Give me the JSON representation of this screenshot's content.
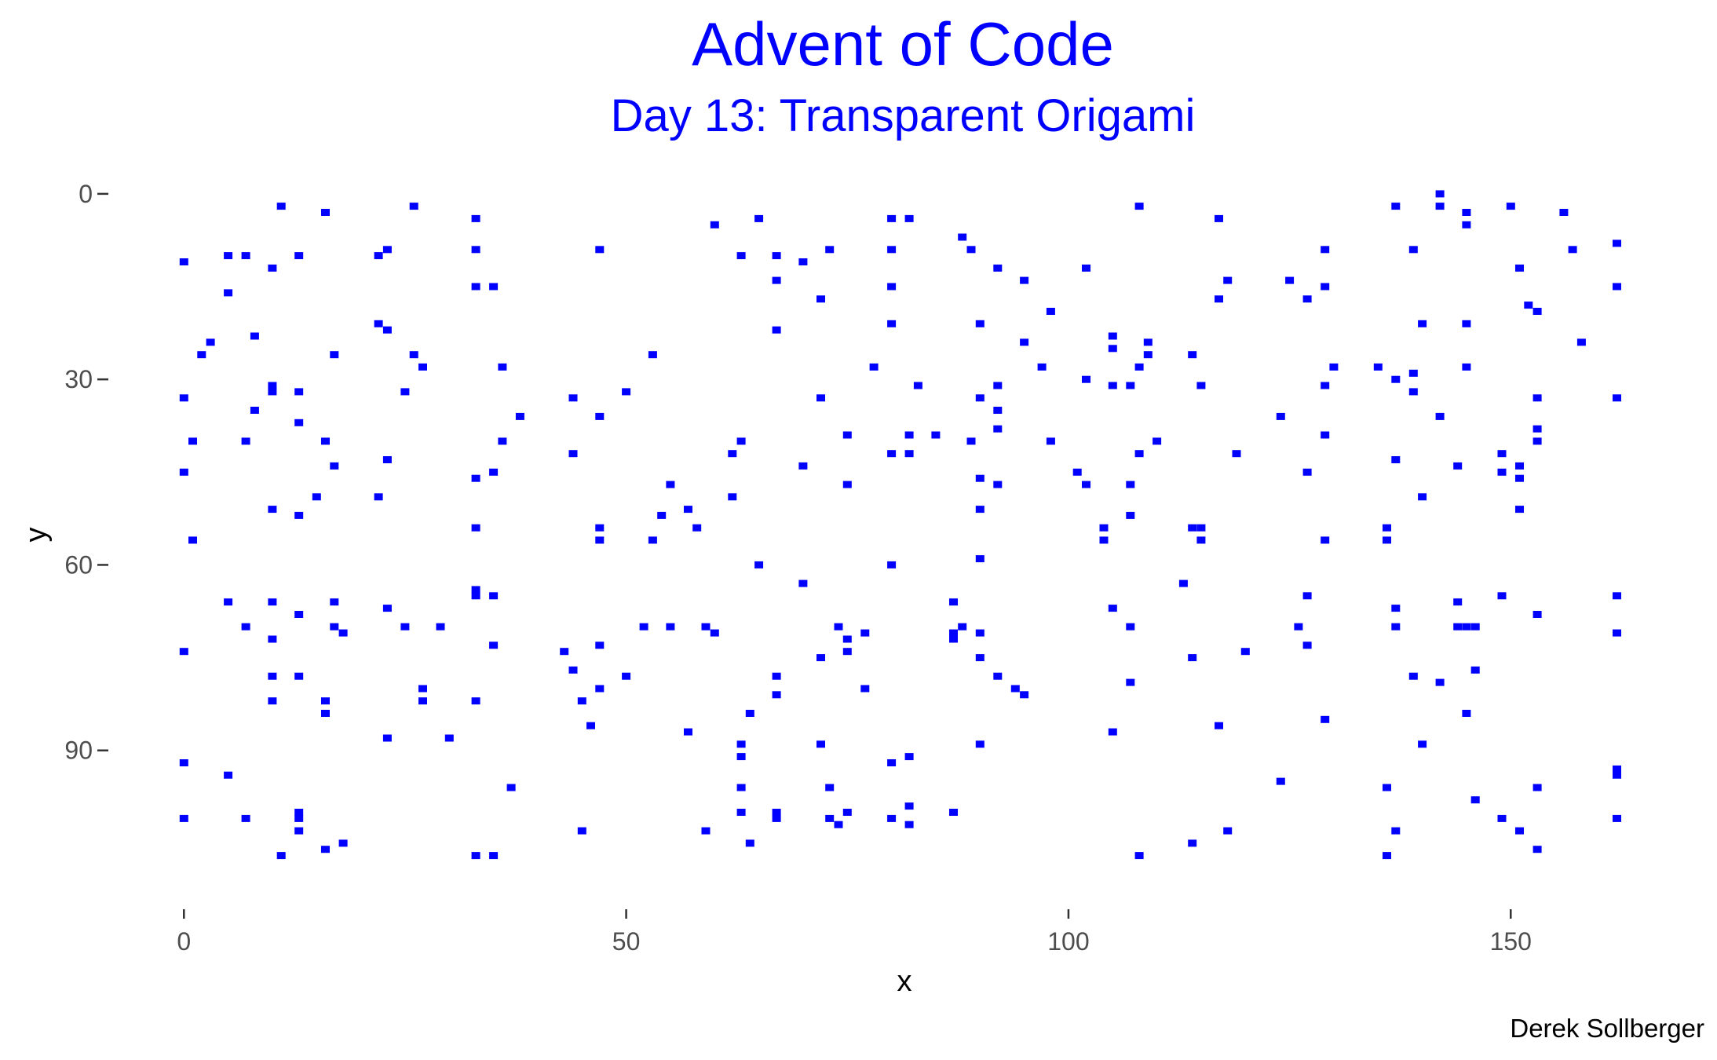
{
  "chart_data": {
    "type": "scatter",
    "title": "Advent of Code",
    "subtitle": "Day 13: Transparent Origami",
    "xlabel": "x",
    "ylabel": "y",
    "caption": "Derek Sollberger",
    "xlim": [
      -1,
      164
    ],
    "ylim": [
      -1,
      112
    ],
    "y_reversed": true,
    "grid": false,
    "legend": "none",
    "marker_color": "#0000ff",
    "xticks": [
      0,
      50,
      100,
      150
    ],
    "yticks": [
      0,
      30,
      60,
      90
    ],
    "points": [
      [
        0,
        11
      ],
      [
        0,
        33
      ],
      [
        0,
        45
      ],
      [
        0,
        74
      ],
      [
        0,
        92
      ],
      [
        0,
        101
      ],
      [
        1,
        40
      ],
      [
        1,
        56
      ],
      [
        2,
        26
      ],
      [
        3,
        24
      ],
      [
        5,
        10
      ],
      [
        5,
        16
      ],
      [
        5,
        66
      ],
      [
        5,
        94
      ],
      [
        7,
        10
      ],
      [
        7,
        40
      ],
      [
        7,
        70
      ],
      [
        7,
        101
      ],
      [
        8,
        23
      ],
      [
        8,
        35
      ],
      [
        10,
        12
      ],
      [
        10,
        31
      ],
      [
        10,
        32
      ],
      [
        10,
        51
      ],
      [
        10,
        66
      ],
      [
        10,
        72
      ],
      [
        10,
        78
      ],
      [
        10,
        82
      ],
      [
        11,
        2
      ],
      [
        11,
        107
      ],
      [
        13,
        10
      ],
      [
        13,
        32
      ],
      [
        13,
        37
      ],
      [
        13,
        52
      ],
      [
        13,
        68
      ],
      [
        13,
        78
      ],
      [
        13,
        100
      ],
      [
        13,
        101
      ],
      [
        13,
        103
      ],
      [
        15,
        49
      ],
      [
        16,
        3
      ],
      [
        16,
        40
      ],
      [
        16,
        82
      ],
      [
        16,
        84
      ],
      [
        16,
        106
      ],
      [
        17,
        26
      ],
      [
        17,
        44
      ],
      [
        17,
        66
      ],
      [
        17,
        70
      ],
      [
        18,
        71
      ],
      [
        18,
        105
      ],
      [
        22,
        10
      ],
      [
        22,
        21
      ],
      [
        22,
        49
      ],
      [
        23,
        9
      ],
      [
        23,
        22
      ],
      [
        23,
        43
      ],
      [
        23,
        67
      ],
      [
        23,
        88
      ],
      [
        25,
        32
      ],
      [
        25,
        70
      ],
      [
        26,
        2
      ],
      [
        26,
        26
      ],
      [
        27,
        28
      ],
      [
        27,
        80
      ],
      [
        27,
        82
      ],
      [
        29,
        70
      ],
      [
        30,
        88
      ],
      [
        33,
        4
      ],
      [
        33,
        9
      ],
      [
        33,
        15
      ],
      [
        33,
        46
      ],
      [
        33,
        54
      ],
      [
        33,
        64
      ],
      [
        33,
        65
      ],
      [
        33,
        82
      ],
      [
        33,
        107
      ],
      [
        35,
        15
      ],
      [
        35,
        45
      ],
      [
        35,
        65
      ],
      [
        35,
        73
      ],
      [
        35,
        107
      ],
      [
        36,
        28
      ],
      [
        36,
        40
      ],
      [
        37,
        96
      ],
      [
        38,
        36
      ],
      [
        43,
        74
      ],
      [
        44,
        33
      ],
      [
        44,
        42
      ],
      [
        44,
        77
      ],
      [
        45,
        82
      ],
      [
        45,
        103
      ],
      [
        46,
        86
      ],
      [
        47,
        9
      ],
      [
        47,
        36
      ],
      [
        47,
        54
      ],
      [
        47,
        56
      ],
      [
        47,
        73
      ],
      [
        47,
        80
      ],
      [
        50,
        32
      ],
      [
        50,
        78
      ],
      [
        52,
        70
      ],
      [
        53,
        26
      ],
      [
        53,
        56
      ],
      [
        54,
        52
      ],
      [
        55,
        47
      ],
      [
        55,
        70
      ],
      [
        57,
        51
      ],
      [
        57,
        87
      ],
      [
        58,
        54
      ],
      [
        59,
        70
      ],
      [
        59,
        103
      ],
      [
        60,
        5
      ],
      [
        60,
        71
      ],
      [
        62,
        42
      ],
      [
        62,
        49
      ],
      [
        63,
        10
      ],
      [
        63,
        40
      ],
      [
        63,
        89
      ],
      [
        63,
        91
      ],
      [
        63,
        96
      ],
      [
        63,
        100
      ],
      [
        64,
        84
      ],
      [
        64,
        105
      ],
      [
        65,
        4
      ],
      [
        65,
        60
      ],
      [
        67,
        10
      ],
      [
        67,
        14
      ],
      [
        67,
        22
      ],
      [
        67,
        78
      ],
      [
        67,
        81
      ],
      [
        67,
        100
      ],
      [
        67,
        101
      ],
      [
        70,
        11
      ],
      [
        70,
        44
      ],
      [
        70,
        63
      ],
      [
        72,
        17
      ],
      [
        72,
        33
      ],
      [
        72,
        75
      ],
      [
        72,
        89
      ],
      [
        73,
        9
      ],
      [
        73,
        96
      ],
      [
        73,
        101
      ],
      [
        74,
        70
      ],
      [
        74,
        102
      ],
      [
        75,
        39
      ],
      [
        75,
        47
      ],
      [
        75,
        72
      ],
      [
        75,
        74
      ],
      [
        75,
        100
      ],
      [
        77,
        71
      ],
      [
        77,
        80
      ],
      [
        78,
        28
      ],
      [
        80,
        4
      ],
      [
        80,
        9
      ],
      [
        80,
        15
      ],
      [
        80,
        21
      ],
      [
        80,
        42
      ],
      [
        80,
        60
      ],
      [
        80,
        92
      ],
      [
        80,
        101
      ],
      [
        82,
        4
      ],
      [
        82,
        39
      ],
      [
        82,
        42
      ],
      [
        82,
        91
      ],
      [
        82,
        99
      ],
      [
        82,
        102
      ],
      [
        83,
        31
      ],
      [
        85,
        39
      ],
      [
        87,
        66
      ],
      [
        87,
        71
      ],
      [
        87,
        72
      ],
      [
        87,
        100
      ],
      [
        88,
        7
      ],
      [
        88,
        70
      ],
      [
        89,
        9
      ],
      [
        89,
        40
      ],
      [
        90,
        21
      ],
      [
        90,
        33
      ],
      [
        90,
        46
      ],
      [
        90,
        51
      ],
      [
        90,
        59
      ],
      [
        90,
        71
      ],
      [
        90,
        75
      ],
      [
        90,
        89
      ],
      [
        92,
        12
      ],
      [
        92,
        31
      ],
      [
        92,
        35
      ],
      [
        92,
        38
      ],
      [
        92,
        47
      ],
      [
        92,
        78
      ],
      [
        94,
        80
      ],
      [
        95,
        14
      ],
      [
        95,
        24
      ],
      [
        95,
        81
      ],
      [
        97,
        28
      ],
      [
        98,
        19
      ],
      [
        98,
        40
      ],
      [
        101,
        45
      ],
      [
        102,
        12
      ],
      [
        102,
        30
      ],
      [
        102,
        47
      ],
      [
        104,
        54
      ],
      [
        104,
        56
      ],
      [
        105,
        23
      ],
      [
        105,
        25
      ],
      [
        105,
        31
      ],
      [
        105,
        67
      ],
      [
        105,
        87
      ],
      [
        107,
        31
      ],
      [
        107,
        47
      ],
      [
        107,
        52
      ],
      [
        107,
        70
      ],
      [
        107,
        79
      ],
      [
        108,
        2
      ],
      [
        108,
        28
      ],
      [
        108,
        42
      ],
      [
        108,
        107
      ],
      [
        109,
        24
      ],
      [
        109,
        26
      ],
      [
        110,
        40
      ],
      [
        113,
        63
      ],
      [
        114,
        26
      ],
      [
        114,
        54
      ],
      [
        114,
        75
      ],
      [
        114,
        105
      ],
      [
        115,
        31
      ],
      [
        115,
        54
      ],
      [
        115,
        56
      ],
      [
        117,
        4
      ],
      [
        117,
        17
      ],
      [
        117,
        86
      ],
      [
        118,
        14
      ],
      [
        118,
        103
      ],
      [
        119,
        42
      ],
      [
        120,
        74
      ],
      [
        124,
        36
      ],
      [
        124,
        95
      ],
      [
        125,
        14
      ],
      [
        126,
        70
      ],
      [
        127,
        17
      ],
      [
        127,
        45
      ],
      [
        127,
        65
      ],
      [
        127,
        73
      ],
      [
        129,
        9
      ],
      [
        129,
        15
      ],
      [
        129,
        31
      ],
      [
        129,
        39
      ],
      [
        129,
        56
      ],
      [
        129,
        85
      ],
      [
        130,
        28
      ],
      [
        135,
        28
      ],
      [
        136,
        54
      ],
      [
        136,
        56
      ],
      [
        136,
        96
      ],
      [
        136,
        107
      ],
      [
        137,
        2
      ],
      [
        137,
        30
      ],
      [
        137,
        43
      ],
      [
        137,
        67
      ],
      [
        137,
        70
      ],
      [
        137,
        103
      ],
      [
        139,
        9
      ],
      [
        139,
        29
      ],
      [
        139,
        32
      ],
      [
        139,
        78
      ],
      [
        140,
        21
      ],
      [
        140,
        49
      ],
      [
        140,
        89
      ],
      [
        142,
        0
      ],
      [
        142,
        2
      ],
      [
        142,
        36
      ],
      [
        142,
        79
      ],
      [
        144,
        44
      ],
      [
        144,
        66
      ],
      [
        144,
        70
      ],
      [
        145,
        3
      ],
      [
        145,
        5
      ],
      [
        145,
        21
      ],
      [
        145,
        28
      ],
      [
        145,
        70
      ],
      [
        145,
        84
      ],
      [
        146,
        70
      ],
      [
        146,
        77
      ],
      [
        146,
        98
      ],
      [
        149,
        42
      ],
      [
        149,
        45
      ],
      [
        149,
        65
      ],
      [
        149,
        101
      ],
      [
        150,
        2
      ],
      [
        151,
        12
      ],
      [
        151,
        44
      ],
      [
        151,
        46
      ],
      [
        151,
        51
      ],
      [
        151,
        103
      ],
      [
        152,
        18
      ],
      [
        153,
        19
      ],
      [
        153,
        33
      ],
      [
        153,
        38
      ],
      [
        153,
        40
      ],
      [
        153,
        68
      ],
      [
        153,
        96
      ],
      [
        153,
        106
      ],
      [
        156,
        3
      ],
      [
        157,
        9
      ],
      [
        158,
        24
      ],
      [
        162,
        8
      ],
      [
        162,
        15
      ],
      [
        162,
        33
      ],
      [
        162,
        65
      ],
      [
        162,
        71
      ],
      [
        162,
        93
      ],
      [
        162,
        94
      ],
      [
        162,
        101
      ]
    ]
  }
}
